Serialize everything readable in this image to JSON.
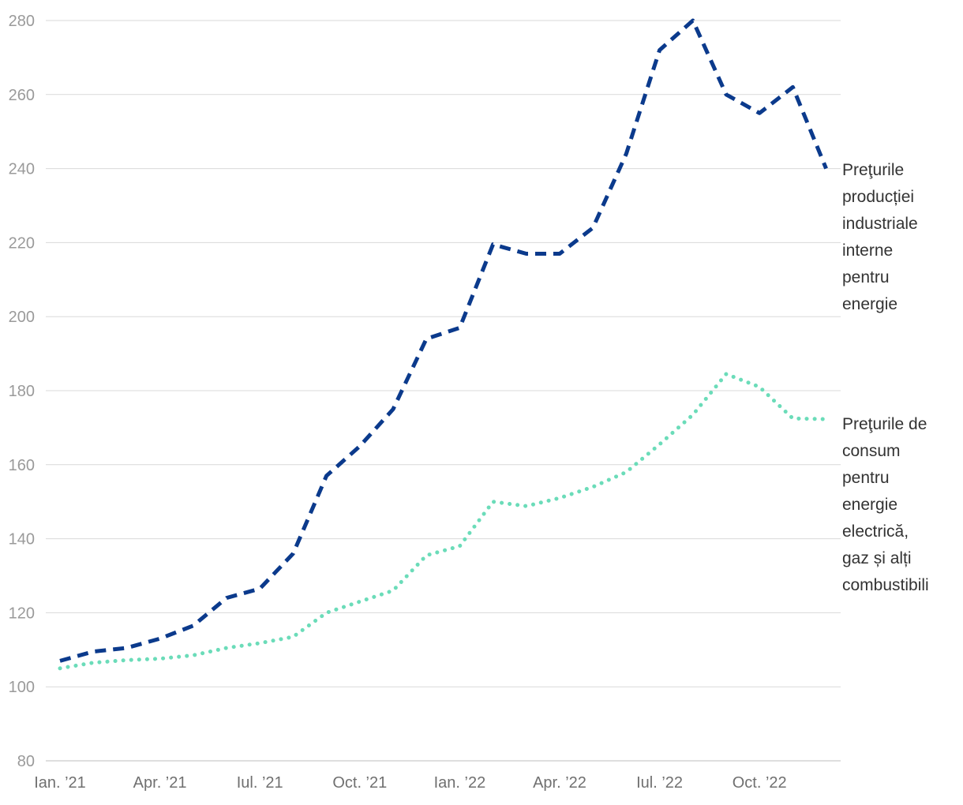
{
  "chart_data": {
    "type": "line",
    "title": "",
    "xlabel": "",
    "ylabel": "",
    "ylim": [
      80,
      280
    ],
    "yticks": [
      80,
      100,
      120,
      140,
      160,
      180,
      200,
      220,
      240,
      260,
      280
    ],
    "grid": true,
    "x": [
      "Ian. ’21",
      "Feb. ’21",
      "Mar. ’21",
      "Apr. ’21",
      "Mai ’21",
      "Iun. ’21",
      "Iul. ’21",
      "Aug. ’21",
      "Sep. ’21",
      "Oct. ’21",
      "Nov. ’21",
      "Dec. ’21",
      "Ian. ’22",
      "Feb. ’22",
      "Mar. ’22",
      "Apr. ’22",
      "Mai ’22",
      "Iun. ’22",
      "Iul. ’22",
      "Aug. ’22",
      "Sep. ’22",
      "Oct. ’22",
      "Nov. ’22",
      "Dec. ’22"
    ],
    "x_tick_labels": [
      {
        "index": 0,
        "label": "Ian. ’21"
      },
      {
        "index": 3,
        "label": "Apr. ’21"
      },
      {
        "index": 6,
        "label": "Iul. ’21"
      },
      {
        "index": 9,
        "label": "Oct. ’21"
      },
      {
        "index": 12,
        "label": "Ian. ’22"
      },
      {
        "index": 15,
        "label": "Apr. ’22"
      },
      {
        "index": 18,
        "label": "Iul. ’22"
      },
      {
        "index": 21,
        "label": "Oct. ’22"
      }
    ],
    "series": [
      {
        "name": "Prețurile producției industriale interne pentru energie",
        "label_lines": [
          "Preţurile",
          "producției",
          "industriale",
          "interne",
          "pentru",
          "energie"
        ],
        "style": "dashed",
        "color": "#0b3a8c",
        "values": [
          107,
          109.5,
          110.5,
          113,
          116.5,
          124,
          126.5,
          136,
          157,
          165,
          175,
          194,
          197,
          219.5,
          217,
          217,
          224,
          244,
          272,
          280,
          260,
          255,
          262,
          240
        ]
      },
      {
        "name": "Prețurile de consum pentru energie electrică, gaz și alți combustibili",
        "label_lines": [
          "Preţurile de",
          "consum",
          "pentru",
          "energie",
          "electrică,",
          "gaz și alți",
          "combustibili"
        ],
        "style": "dotted",
        "color": "#6bdcb9",
        "values": [
          105,
          106.5,
          107.2,
          107.6,
          108.5,
          110.5,
          111.8,
          113.5,
          120,
          123,
          126,
          135.5,
          138,
          150,
          148.8,
          151,
          154,
          158,
          165.5,
          173.5,
          184.5,
          181,
          172.5,
          172.3
        ]
      }
    ]
  }
}
